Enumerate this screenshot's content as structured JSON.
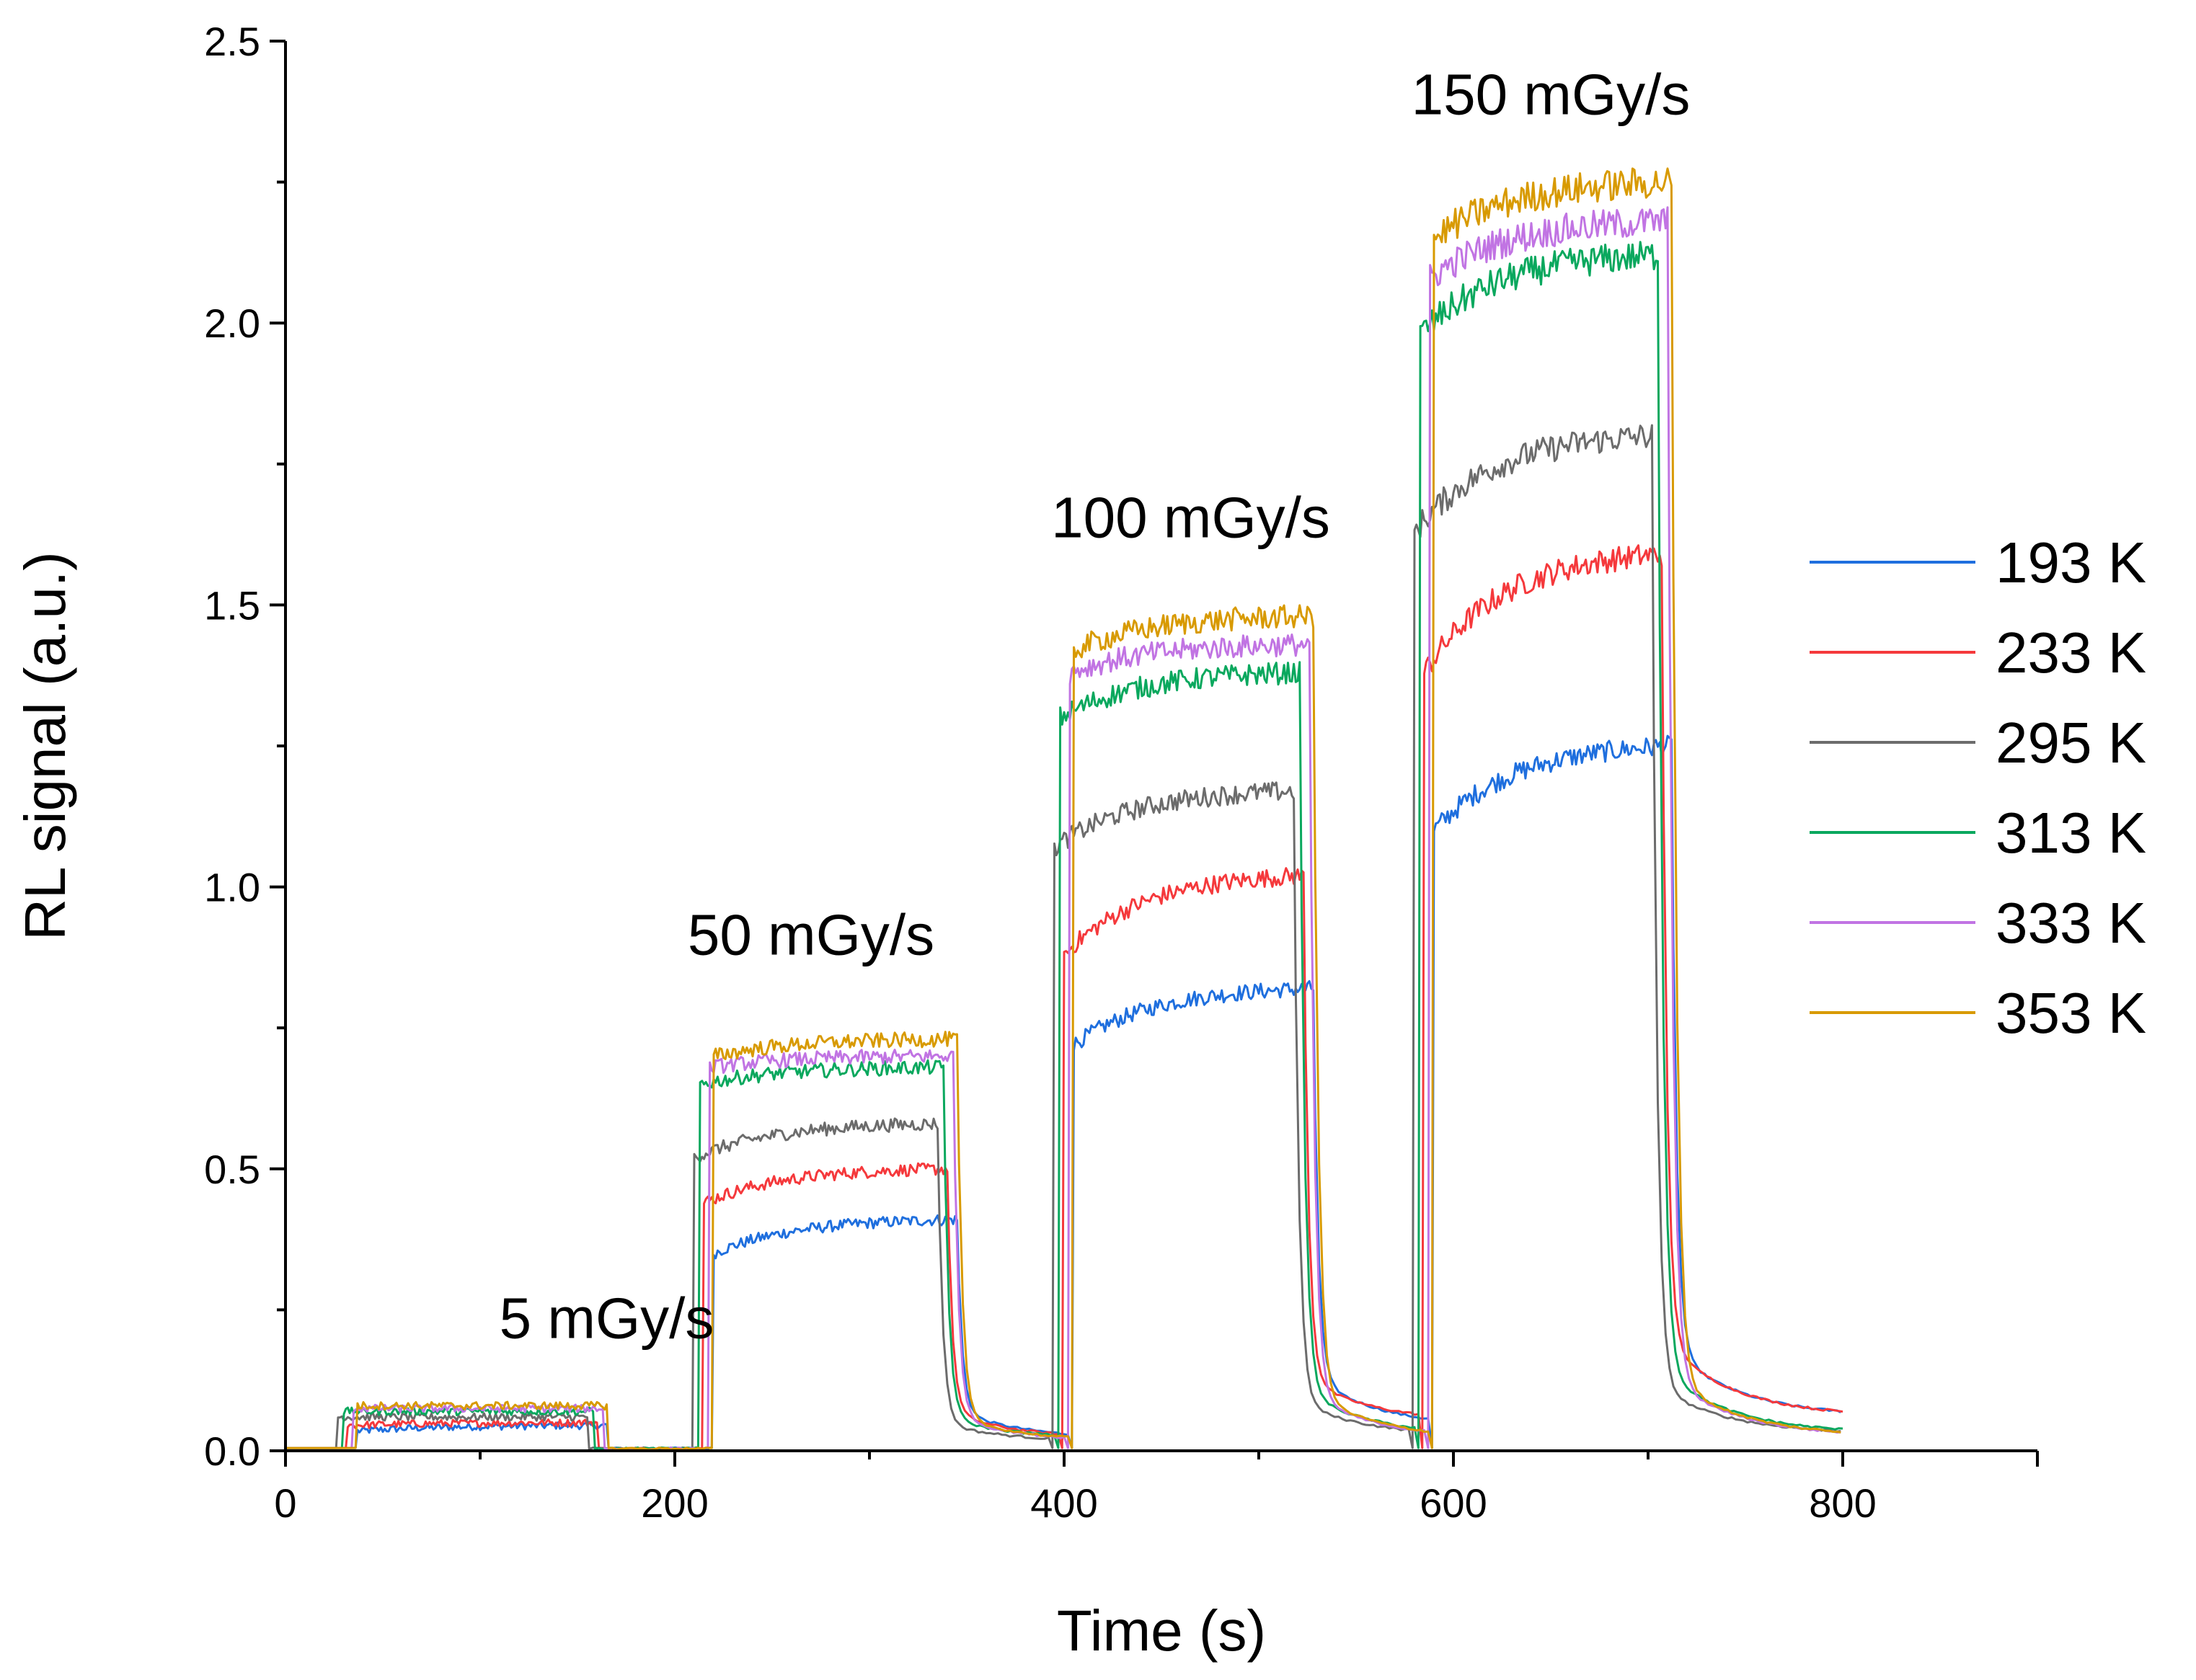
{
  "chart_data": {
    "type": "line",
    "xlabel": "Time (s)",
    "ylabel": "RL signal (a.u.)",
    "xlim": [
      0,
      900
    ],
    "ylim": [
      0,
      2.5
    ],
    "x_ticks": [
      0,
      200,
      400,
      600,
      800
    ],
    "y_ticks": [
      0.0,
      0.5,
      1.0,
      1.5,
      2.0,
      2.5
    ],
    "x_tick_labels": [
      "0",
      "200",
      "400",
      "600",
      "800"
    ],
    "y_tick_labels": [
      "0.0",
      "0.5",
      "1.0",
      "1.5",
      "2.0",
      "2.5"
    ],
    "grid": false,
    "legend_position": "right",
    "pulses": [
      {
        "label": "5 mGy/s",
        "start": 27,
        "end": 155,
        "label_x": 165,
        "label_y": 0.2
      },
      {
        "label": "50 mGy/s",
        "start": 210,
        "end": 335,
        "label_x": 270,
        "label_y": 0.88
      },
      {
        "label": "100 mGy/s",
        "start": 395,
        "end": 518,
        "label_x": 465,
        "label_y": 1.62
      },
      {
        "label": "150 mGy/s",
        "start": 580,
        "end": 702,
        "label_x": 650,
        "label_y": 2.37
      }
    ],
    "series": [
      {
        "name": "193 K",
        "color": "#1f6fde",
        "onset_delay": 10,
        "plateaus": [
          [
            0.035,
            0.045
          ],
          [
            0.35,
            0.41
          ],
          [
            0.72,
            0.82
          ],
          [
            1.1,
            1.25
          ]
        ],
        "tails": [
          [
            0.07,
            0.02
          ],
          [
            0.13,
            0.04
          ],
          [
            0.18,
            0.06
          ]
        ]
      },
      {
        "name": "233 K",
        "color": "#f5393c",
        "onset_delay": 5,
        "plateaus": [
          [
            0.045,
            0.05
          ],
          [
            0.44,
            0.5
          ],
          [
            0.88,
            1.02
          ],
          [
            1.38,
            1.59
          ]
        ],
        "tails": [
          [
            0.07,
            0.02
          ],
          [
            0.13,
            0.05
          ],
          [
            0.2,
            0.06
          ]
        ]
      },
      {
        "name": "295 K",
        "color": "#6c6c6c",
        "onset_delay": 0,
        "plateaus": [
          [
            0.06,
            0.06
          ],
          [
            0.52,
            0.58
          ],
          [
            1.07,
            1.17
          ],
          [
            1.63,
            1.8
          ]
        ],
        "tails": [
          [
            0.05,
            0.015
          ],
          [
            0.09,
            0.025
          ],
          [
            0.12,
            0.03
          ]
        ]
      },
      {
        "name": "313 K",
        "color": "#0aa85e",
        "onset_delay": 3,
        "plateaus": [
          [
            0.07,
            0.07
          ],
          [
            0.65,
            0.68
          ],
          [
            1.3,
            1.38
          ],
          [
            1.98,
            2.12
          ]
        ],
        "tails": [
          [
            0.06,
            0.02
          ],
          [
            0.11,
            0.025
          ],
          [
            0.15,
            0.03
          ]
        ]
      },
      {
        "name": "333 K",
        "color": "#c174e3",
        "onset_delay": 8,
        "plateaus": [
          [
            0.075,
            0.075
          ],
          [
            0.68,
            0.7
          ],
          [
            1.38,
            1.43
          ],
          [
            2.08,
            2.18
          ]
        ],
        "tails": [
          [
            0.06,
            0.015
          ],
          [
            0.1,
            0.02
          ],
          [
            0.13,
            0.025
          ]
        ]
      },
      {
        "name": "353 K",
        "color": "#d89a00",
        "onset_delay": 10,
        "plateaus": [
          [
            0.08,
            0.08
          ],
          [
            0.7,
            0.73
          ],
          [
            1.42,
            1.48
          ],
          [
            2.15,
            2.25
          ]
        ],
        "tails": [
          [
            0.06,
            0.015
          ],
          [
            0.1,
            0.02
          ],
          [
            0.13,
            0.025
          ]
        ]
      }
    ]
  }
}
